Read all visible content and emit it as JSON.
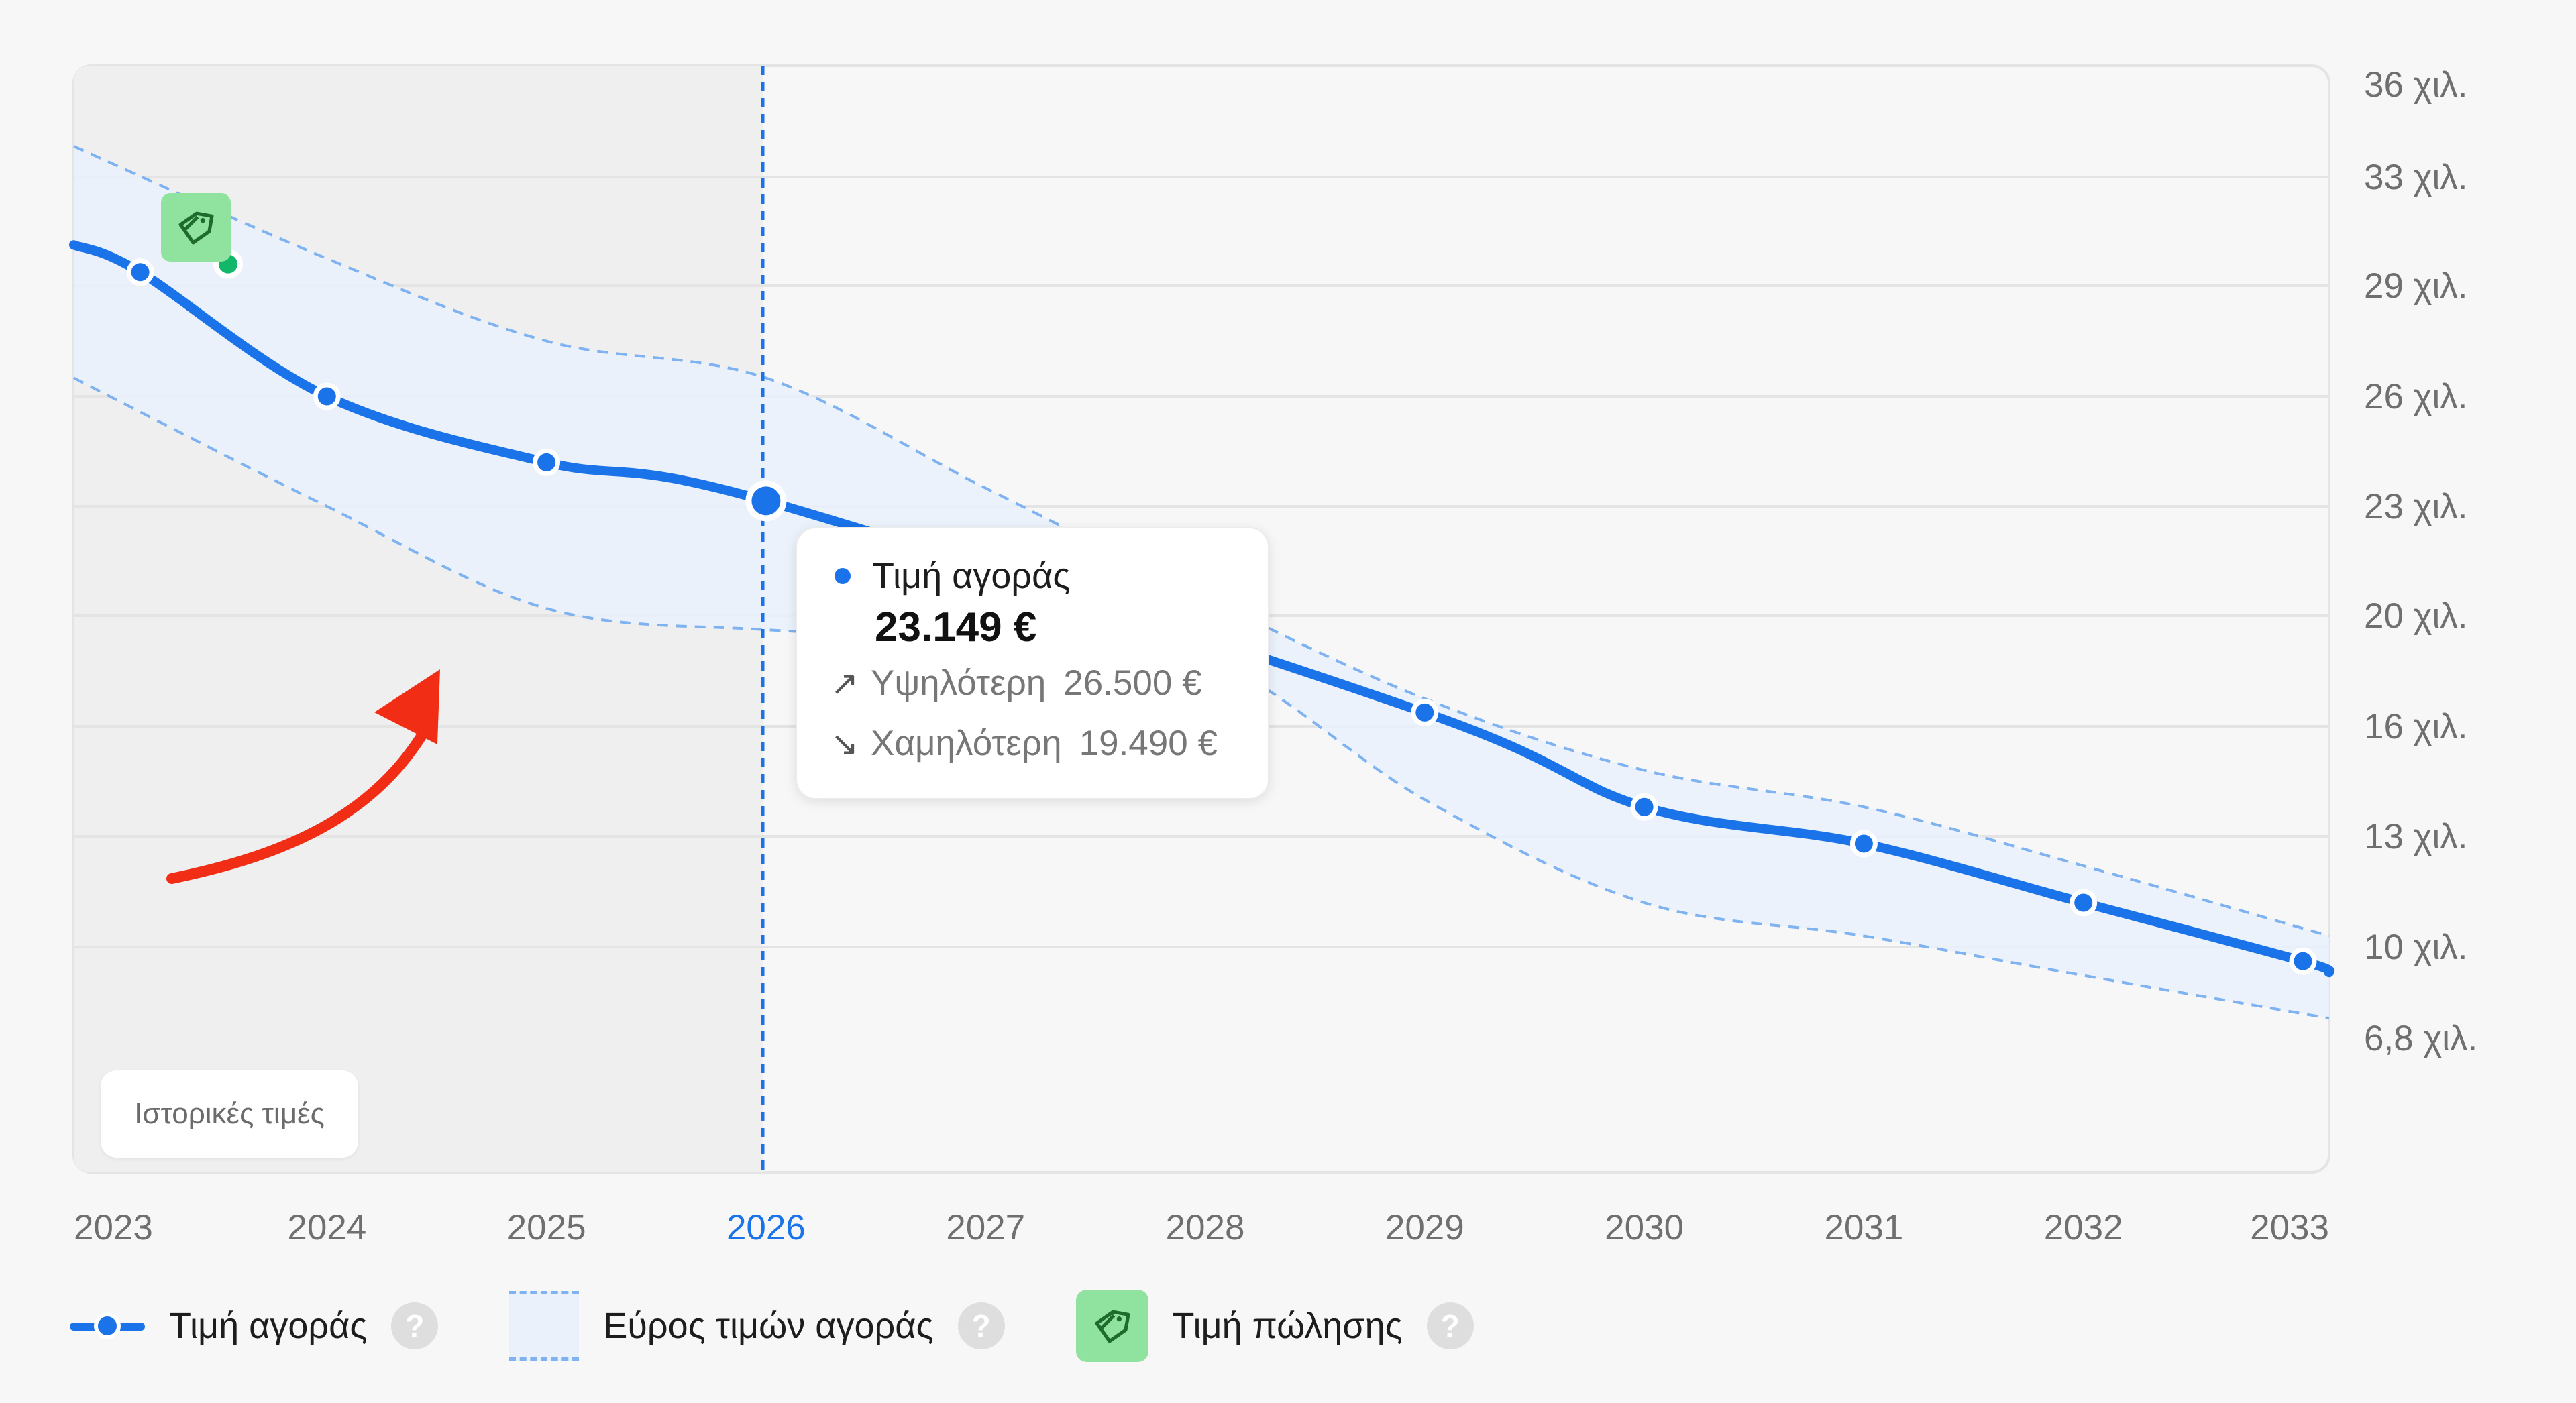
{
  "chart_data": {
    "type": "line",
    "x": [
      2023,
      2024,
      2025,
      2026,
      2027,
      2028,
      2029,
      2030,
      2031,
      2032,
      2033
    ],
    "x_tick_labels": [
      "2023",
      "2024",
      "2025",
      "2026",
      "2027",
      "2028",
      "2029",
      "2030",
      "2031",
      "2032",
      "2033"
    ],
    "current_x": "2026",
    "y_tick_labels": [
      "36 χιλ.",
      "33 χιλ.",
      "29 χιλ.",
      "26 χιλ.",
      "23 χιλ.",
      "20 χιλ.",
      "16 χιλ.",
      "13 χιλ.",
      "10 χιλ.",
      "6,8 χιλ."
    ],
    "y_ticks": [
      36000,
      33000,
      29000,
      26000,
      23000,
      20000,
      16000,
      13000,
      10000,
      6800
    ],
    "series": [
      {
        "name": "Τιμή αγοράς",
        "color": "#1a73e8",
        "points": [
          {
            "x": 2023.15,
            "y": 29500
          },
          {
            "x": 2024.0,
            "y": 26000
          },
          {
            "x": 2025.0,
            "y": 24200
          },
          {
            "x": 2026.0,
            "y": 23149
          },
          {
            "x": 2029.0,
            "y": 16500
          },
          {
            "x": 2030.0,
            "y": 13800
          },
          {
            "x": 2031.0,
            "y": 12800
          },
          {
            "x": 2032.0,
            "y": 11200
          },
          {
            "x": 2033.0,
            "y": 9500
          }
        ]
      },
      {
        "name": "Εύρος τιμών αγοράς",
        "color": "#7fb2f0",
        "upper": [
          34000,
          30000,
          27500,
          26500,
          23500,
          20500,
          17000,
          14800,
          13800,
          12200,
          10300
        ],
        "lower": [
          26500,
          23000,
          20200,
          19490,
          19200,
          18500,
          14000,
          11200,
          10300,
          9000,
          7500
        ]
      }
    ],
    "sale_price": {
      "x": 2023.55,
      "y": 29800,
      "color": "#12b76a"
    },
    "historical_region": {
      "from": 2023,
      "to": 2026
    },
    "grid": true,
    "y_axis_position": "right"
  },
  "historical_label": "Ιστορικές τιμές",
  "tooltip": {
    "series_label": "Τιμή αγοράς",
    "value": "23.149 €",
    "high_label": "Υψηλότερη",
    "high_value": "26.500 €",
    "low_label": "Χαμηλότερη",
    "low_value": "19.490 €"
  },
  "legend": {
    "purchase_price": "Τιμή αγοράς",
    "price_range": "Εύρος τιμών αγοράς",
    "sale_price": "Τιμή πώλησης",
    "help": "?"
  },
  "colors": {
    "line": "#1a73e8",
    "range_fill": "#eaf1fb",
    "range_border": "#7fb2f0",
    "tag_bg": "#8fe39e",
    "annotation_arrow": "#f12d16"
  }
}
